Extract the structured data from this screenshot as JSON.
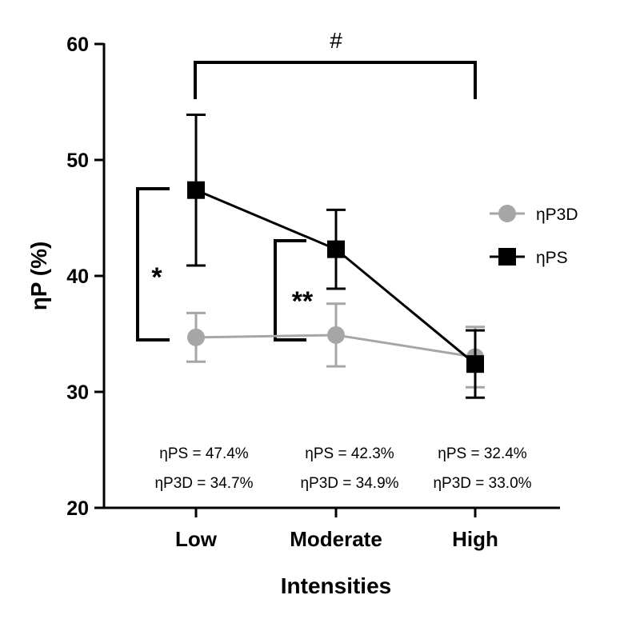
{
  "chart_data": {
    "type": "line",
    "xlabel": "Intensities",
    "ylabel": "ηP (%)",
    "categories": [
      "Low",
      "Moderate",
      "High"
    ],
    "ylim": [
      20,
      60
    ],
    "yticks": [
      20,
      30,
      40,
      50,
      60
    ],
    "grid": false,
    "legend_position": "right",
    "series": [
      {
        "name": "ηP3D",
        "marker": "circle",
        "color": "#a6a6a8",
        "values": [
          34.7,
          34.9,
          33.0
        ],
        "error": [
          2.1,
          2.7,
          2.6
        ]
      },
      {
        "name": "ηPS",
        "marker": "square",
        "color": "#000000",
        "values": [
          47.4,
          42.3,
          32.4
        ],
        "error": [
          6.5,
          3.4,
          2.9
        ]
      }
    ],
    "annotations": [
      {
        "lines": [
          "ηPS = 47.4%",
          "ηP3D = 34.7%"
        ]
      },
      {
        "lines": [
          "ηPS = 42.3%",
          "ηP3D = 34.9%"
        ]
      },
      {
        "lines": [
          "ηPS = 32.4%",
          "ηP3D = 33.0%"
        ]
      }
    ],
    "significance": [
      {
        "symbol": "*"
      },
      {
        "symbol": "**"
      },
      {
        "symbol": "#"
      }
    ]
  }
}
